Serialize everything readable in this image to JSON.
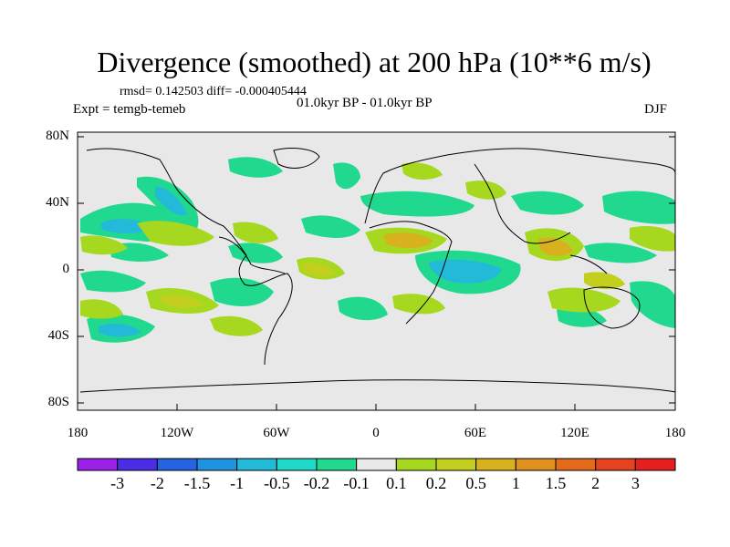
{
  "title": "Divergence (smoothed) at 200 hPa (10**6 m/s)",
  "stats": "rmsd= 0.142503  diff= -0.000405444",
  "experiment": "Expt = temgb-temeb",
  "period": "01.0kyr BP - 01.0kyr BP",
  "season": "DJF",
  "map": {
    "lat_labels": [
      "80N",
      "40N",
      "0",
      "40S",
      "80S"
    ],
    "lon_labels": [
      "180",
      "120W",
      "60W",
      "0",
      "60E",
      "120E",
      "180"
    ],
    "background_color": "#e8e8e8"
  },
  "colorbar": {
    "colors": [
      "#9b21e8",
      "#4b2de6",
      "#2563e0",
      "#1f93df",
      "#23b9d8",
      "#1fd8c8",
      "#21d98e",
      "#e8e8e8",
      "#a6d820",
      "#c2cf1f",
      "#d8b21e",
      "#e0901e",
      "#e36a1d",
      "#e54320",
      "#e31f1f"
    ],
    "labels": [
      "-3",
      "-2",
      "-1.5",
      "-1",
      "-0.5",
      "-0.2",
      "-0.1",
      "0.1",
      "0.2",
      "0.5",
      "1",
      "1.5",
      "2",
      "3"
    ]
  }
}
